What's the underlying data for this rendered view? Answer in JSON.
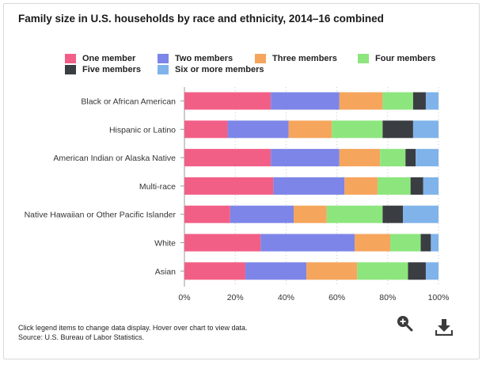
{
  "title": "Family size in U.S. households by race and ethnicity, 2014–16 combined",
  "legend": [
    {
      "label": "One member",
      "color": "#f25f86"
    },
    {
      "label": "Two members",
      "color": "#7d85e8"
    },
    {
      "label": "Three members",
      "color": "#f6a55d"
    },
    {
      "label": "Four members",
      "color": "#8ce67d"
    },
    {
      "label": "Five members",
      "color": "#3a3d42"
    },
    {
      "label": "Six or more members",
      "color": "#7fb3ea"
    }
  ],
  "chart_data": {
    "type": "bar",
    "orientation": "horizontal",
    "stacked": true,
    "title": "Family size in U.S. households by race and ethnicity, 2014–16 combined",
    "xlabel": "",
    "ylabel": "",
    "xlim": [
      0,
      100
    ],
    "x_ticks": [
      "0%",
      "20%",
      "40%",
      "60%",
      "80%",
      "100%"
    ],
    "categories": [
      "Black or African American",
      "Hispanic or Latino",
      "American Indian or Alaska Native",
      "Multi-race",
      "Native Hawaiian or Other Pacific Islander",
      "White",
      "Asian"
    ],
    "series": [
      {
        "name": "One member",
        "values": [
          34,
          17,
          34,
          35,
          18,
          30,
          24
        ]
      },
      {
        "name": "Two members",
        "values": [
          27,
          24,
          27,
          28,
          25,
          37,
          24
        ]
      },
      {
        "name": "Three members",
        "values": [
          17,
          17,
          16,
          13,
          13,
          14,
          20
        ]
      },
      {
        "name": "Four members",
        "values": [
          12,
          20,
          10,
          13,
          22,
          12,
          20
        ]
      },
      {
        "name": "Five members",
        "values": [
          5,
          12,
          4,
          5,
          8,
          4,
          7
        ]
      },
      {
        "name": "Six or more members",
        "values": [
          5,
          10,
          9,
          6,
          14,
          3,
          5
        ]
      }
    ]
  },
  "footer": {
    "note": "Click legend items to change data display. Hover over chart to view data.",
    "source": "Source: U.S. Bureau of Labor Statistics."
  },
  "icons": {
    "zoom": "zoom-in-icon",
    "download": "download-icon"
  }
}
